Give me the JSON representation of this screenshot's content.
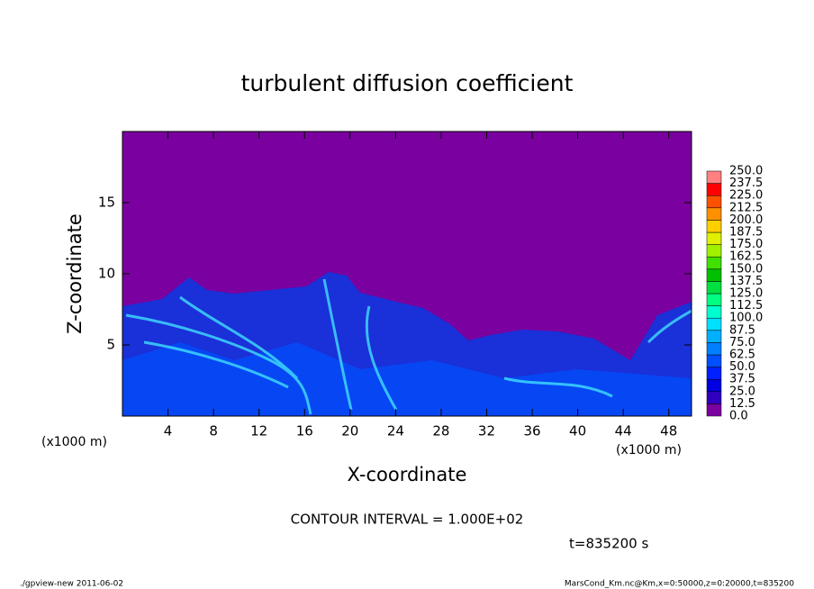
{
  "chart_data": {
    "type": "contour",
    "title": "turbulent diffusion coefficient",
    "xlabel": "X-coordinate",
    "ylabel": "Z-coordinate",
    "x_unit_labels": [
      "(x1000 m)",
      "(x1000 m)"
    ],
    "xlim": [
      0,
      50
    ],
    "xticks": [
      4,
      8,
      12,
      16,
      20,
      24,
      28,
      32,
      36,
      40,
      44,
      48
    ],
    "ylim": [
      0,
      20
    ],
    "yticks": [
      5,
      10,
      15
    ],
    "colorbar": {
      "levels": [
        {
          "value": 0,
          "label": "0.0"
        },
        12.5,
        {
          "value": 25,
          "label": "25.0"
        },
        37.5,
        {
          "value": 50,
          "label": "50.0"
        },
        62.5,
        {
          "value": 75,
          "label": "75.0"
        },
        87.5,
        {
          "value": 100,
          "label": "100.0"
        },
        112.5,
        {
          "value": 125,
          "label": "125.0"
        },
        137.5,
        {
          "value": 150,
          "label": "150.0"
        },
        162.5,
        {
          "value": 175,
          "label": "175.0"
        },
        187.5,
        {
          "value": 200,
          "label": "200.0"
        },
        212.5,
        {
          "value": 225,
          "label": "225.0"
        },
        237.5,
        {
          "value": 250,
          "label": "250.0"
        }
      ],
      "colors": [
        "#7a00a0",
        "#3000c0",
        "#0000e0",
        "#0020ff",
        "#0050ff",
        "#0080ff",
        "#00b0ff",
        "#00e0ff",
        "#00ffd0",
        "#00ff80",
        "#00e040",
        "#00c000",
        "#40e000",
        "#a0f000",
        "#e0f000",
        "#ffd000",
        "#ff9000",
        "#ff5000",
        "#ff0000",
        "#ff8080"
      ]
    },
    "annotations": [
      "CONTOUR INTERVAL = 1.000E+02",
      "t=835200 s",
      "./gpview-new  2011-06-02",
      "MarsCond_Km.nc@Km,x=0:50000,z=0:20000,t=835200"
    ]
  }
}
